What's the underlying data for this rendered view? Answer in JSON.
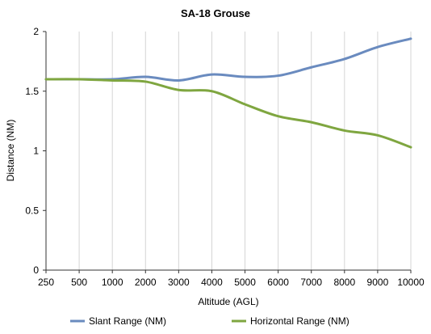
{
  "chart_data": {
    "type": "line",
    "title": "SA-18 Grouse",
    "xlabel": "Altitude (AGL)",
    "ylabel": "Distance (NM)",
    "categories": [
      "250",
      "500",
      "1000",
      "2000",
      "3000",
      "4000",
      "5000",
      "6000",
      "7000",
      "8000",
      "9000",
      "10000"
    ],
    "ylim": [
      0,
      2
    ],
    "yticks": [
      "0",
      "0.5",
      "1",
      "1.5",
      "2"
    ],
    "grid": "vertical",
    "legend_position": "bottom",
    "series": [
      {
        "name": "Slant Range (NM)",
        "color": "#6a8bbf",
        "values": [
          1.6,
          1.6,
          1.6,
          1.62,
          1.59,
          1.64,
          1.62,
          1.63,
          1.7,
          1.77,
          1.87,
          1.94
        ]
      },
      {
        "name": "Horizontal Range (NM)",
        "color": "#7fa640",
        "values": [
          1.6,
          1.6,
          1.59,
          1.58,
          1.51,
          1.5,
          1.39,
          1.29,
          1.24,
          1.17,
          1.13,
          1.03
        ]
      }
    ]
  }
}
